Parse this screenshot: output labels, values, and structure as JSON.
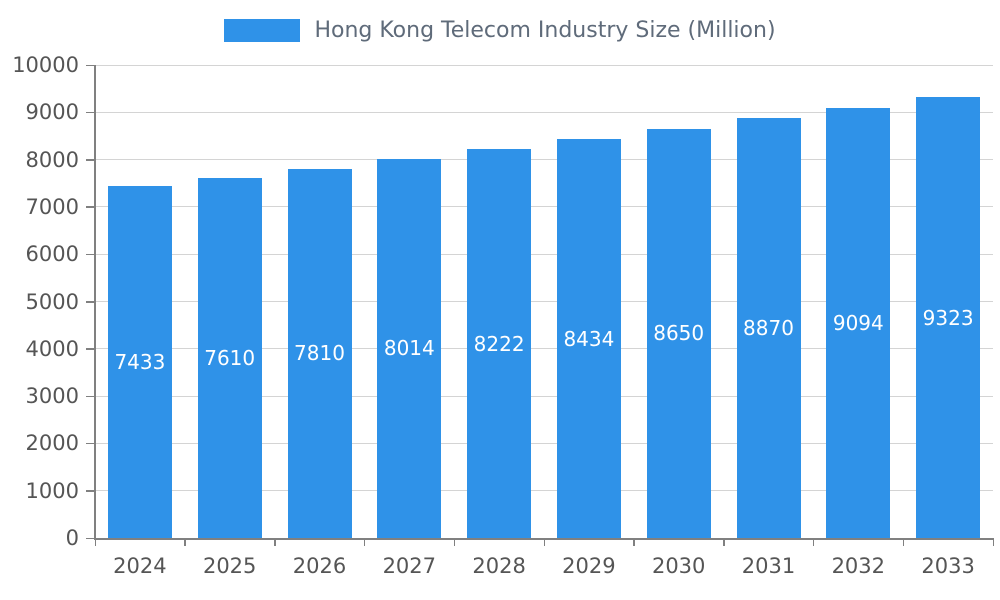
{
  "chart_data": {
    "type": "bar",
    "title": "Hong Kong Telecom Industry Size (Million)",
    "categories": [
      "2024",
      "2025",
      "2026",
      "2027",
      "2028",
      "2029",
      "2030",
      "2031",
      "2032",
      "2033"
    ],
    "values": [
      7433,
      7610,
      7810,
      8014,
      8222,
      8434,
      8650,
      8870,
      9094,
      9323
    ],
    "xlabel": "",
    "ylabel": "",
    "ylim": [
      0,
      10000
    ],
    "ytick_step": 1000,
    "grid": true,
    "legend_position": "top",
    "bar_labels_inside": true,
    "colors": {
      "bar": "#2F92E8",
      "grid": "#d4d4d4",
      "axis": "#808080",
      "tick_text": "#555555",
      "legend_text": "#5f6b7a",
      "bar_label": "#ffffff"
    }
  }
}
